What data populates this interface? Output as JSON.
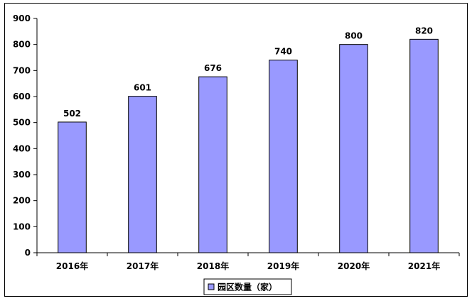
{
  "chart_data": {
    "type": "bar",
    "categories": [
      "2016年",
      "2017年",
      "2018年",
      "2019年",
      "2020年",
      "2021年"
    ],
    "series": [
      {
        "name": "园区数量（家）",
        "values": [
          502,
          601,
          676,
          740,
          800,
          820
        ]
      }
    ],
    "ylim": [
      0,
      900
    ],
    "y_ticks": [
      0,
      100,
      200,
      300,
      400,
      500,
      600,
      700,
      800,
      900
    ],
    "grid": false,
    "legend_position": "bottom",
    "bar_color": "#9999ff",
    "bar_border_color": "#000000"
  }
}
